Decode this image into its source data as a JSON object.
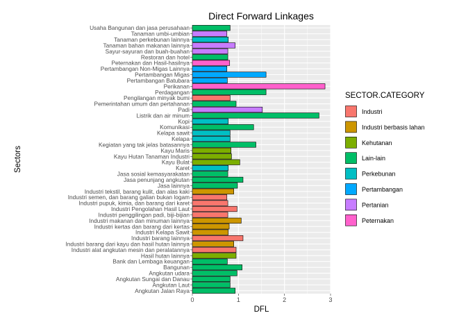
{
  "chart_data": {
    "type": "bar",
    "orientation": "horizontal",
    "title": "Direct Forward Linkages",
    "xlabel": "DFL",
    "ylabel": "Sectors",
    "xlim": [
      0,
      3
    ],
    "xticks": [
      "0",
      "1",
      "2",
      "3"
    ],
    "grid": true,
    "legend_position": "right",
    "legend": {
      "title": "SECTOR.CATEGORY",
      "items": [
        {
          "name": "Industri",
          "color": "#F8766D"
        },
        {
          "name": "Industri berbasis lahan",
          "color": "#CD9600"
        },
        {
          "name": "Kehutanan",
          "color": "#7CAE00"
        },
        {
          "name": "Lain-lain",
          "color": "#00BE67"
        },
        {
          "name": "Perkebunan",
          "color": "#00BFC4"
        },
        {
          "name": "Pertambangan",
          "color": "#00A9FF"
        },
        {
          "name": "Pertanian",
          "color": "#C77CFF"
        },
        {
          "name": "Peternakan",
          "color": "#FF61CC"
        }
      ]
    },
    "bars": [
      {
        "label": "Usaha Bangunan dan jasa perusahaan",
        "value": 0.82,
        "category": "Lain-lain"
      },
      {
        "label": "Tanaman umbi-umbian",
        "value": 0.75,
        "category": "Pertanian"
      },
      {
        "label": "Tanaman perkebunan lainnya",
        "value": 0.78,
        "category": "Perkebunan"
      },
      {
        "label": "Tanaman bahan makanan lainnya",
        "value": 0.93,
        "category": "Pertanian"
      },
      {
        "label": "Sayur-sayuran dan buah-buahan",
        "value": 0.77,
        "category": "Pertanian"
      },
      {
        "label": "Restoran dan hotel",
        "value": 0.77,
        "category": "Lain-lain"
      },
      {
        "label": "Peternakan dan Hasil-hasilnya",
        "value": 0.81,
        "category": "Peternakan"
      },
      {
        "label": "Pertambangan Non-Migas Lainnya",
        "value": 0.75,
        "category": "Pertambangan"
      },
      {
        "label": "Pertambangan Migas",
        "value": 1.6,
        "category": "Pertambangan"
      },
      {
        "label": "Pertambangan Batubara",
        "value": 0.76,
        "category": "Pertambangan"
      },
      {
        "label": "Perikanan",
        "value": 2.88,
        "category": "Peternakan"
      },
      {
        "label": "Perdagangan",
        "value": 1.6,
        "category": "Lain-lain"
      },
      {
        "label": "Pengilangan minyak bumi",
        "value": 0.82,
        "category": "Industri"
      },
      {
        "label": "Pemerintahan umum dan pertahanan",
        "value": 0.95,
        "category": "Lain-lain"
      },
      {
        "label": "Padi",
        "value": 1.52,
        "category": "Pertanian"
      },
      {
        "label": "Listrik dan air minum",
        "value": 2.75,
        "category": "Lain-lain"
      },
      {
        "label": "Kopi",
        "value": 0.78,
        "category": "Perkebunan"
      },
      {
        "label": "Komunikasi",
        "value": 1.33,
        "category": "Lain-lain"
      },
      {
        "label": "Kelapa sawit",
        "value": 0.82,
        "category": "Perkebunan"
      },
      {
        "label": "Kelapa",
        "value": 0.82,
        "category": "Perkebunan"
      },
      {
        "label": "Kegiatan yang tak jelas batasannya",
        "value": 1.38,
        "category": "Lain-lain"
      },
      {
        "label": "Kayu Maris",
        "value": 0.84,
        "category": "Kehutanan"
      },
      {
        "label": "Kayu Hutan Tanaman Industri",
        "value": 0.85,
        "category": "Kehutanan"
      },
      {
        "label": "Kayu Bulat",
        "value": 1.03,
        "category": "Kehutanan"
      },
      {
        "label": "Karet",
        "value": 0.78,
        "category": "Perkebunan"
      },
      {
        "label": "Jasa sosial kemasyarakatan",
        "value": 0.77,
        "category": "Lain-lain"
      },
      {
        "label": "Jasa penunjang angkutan",
        "value": 1.1,
        "category": "Lain-lain"
      },
      {
        "label": "Jasa lainnya",
        "value": 0.98,
        "category": "Lain-lain"
      },
      {
        "label": "Industri tekstil, barang kulit, dan alas kaki",
        "value": 0.9,
        "category": "Industri berbasis lahan"
      },
      {
        "label": "Industri semen, dan barang galian bukan logam",
        "value": 0.75,
        "category": "Industri"
      },
      {
        "label": "Industri pupuk, kimia, dan barang dari karet",
        "value": 0.77,
        "category": "Industri"
      },
      {
        "label": "Industri Pengolahan Hasil Laut",
        "value": 0.97,
        "category": "Industri"
      },
      {
        "label": "Industri penggilingan padi, biji-bijian",
        "value": 0.77,
        "category": "Industri"
      },
      {
        "label": "Industri makanan dan minuman lainnya",
        "value": 1.06,
        "category": "Industri berbasis lahan"
      },
      {
        "label": "Industri kertas dan barang dari kertas",
        "value": 0.8,
        "category": "Industri berbasis lahan"
      },
      {
        "label": "Industri Kelapa Sawit",
        "value": 0.78,
        "category": "Industri berbasis lahan"
      },
      {
        "label": "Industri barang lainnya",
        "value": 1.1,
        "category": "Industri"
      },
      {
        "label": "Industri barang dari kayu dan hasil hutan lainnya",
        "value": 0.9,
        "category": "Industri berbasis lahan"
      },
      {
        "label": "Industri alat angkutan mesin dan peralatannya",
        "value": 0.95,
        "category": "Industri"
      },
      {
        "label": "Hasil hutan lainnya",
        "value": 0.95,
        "category": "Kehutanan"
      },
      {
        "label": "Bank dan Lembaga keuangan",
        "value": 0.76,
        "category": "Lain-lain"
      },
      {
        "label": "Bangunan",
        "value": 1.08,
        "category": "Lain-lain"
      },
      {
        "label": "Angkutan udara",
        "value": 0.97,
        "category": "Lain-lain"
      },
      {
        "label": "Angkutan Sungai dan Danau",
        "value": 0.82,
        "category": "Lain-lain"
      },
      {
        "label": "Angkutan Laut",
        "value": 0.82,
        "category": "Lain-lain"
      },
      {
        "label": "Angkutan Jalan Raya",
        "value": 0.93,
        "category": "Lain-lain"
      }
    ]
  }
}
